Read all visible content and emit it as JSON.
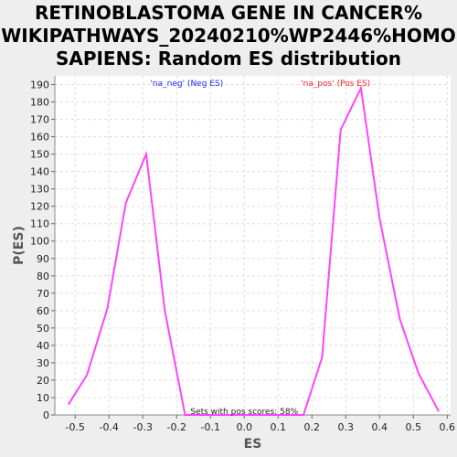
{
  "chart_data": {
    "type": "line",
    "title_lines": [
      "RETINOBLASTOMA GENE IN CANCER%",
      "WIKIPATHWAYS_20240210%WP2446%HOMO",
      "SAPIENS: Random ES distribution"
    ],
    "xlabel": "ES",
    "ylabel": "P(ES)",
    "xlim": [
      -0.56,
      0.61
    ],
    "ylim": [
      0,
      195
    ],
    "xticks": [
      -0.5,
      -0.4,
      -0.3,
      -0.2,
      -0.1,
      0.0,
      0.1,
      0.2,
      0.3,
      0.4,
      0.5,
      0.6
    ],
    "yticks": [
      0,
      10,
      20,
      30,
      40,
      50,
      60,
      70,
      80,
      90,
      100,
      110,
      120,
      130,
      140,
      150,
      160,
      170,
      180,
      190
    ],
    "xtick_labels": [
      "-0.5",
      "-0.4",
      "-0.3",
      "-0.2",
      "-0.1",
      "0.0",
      "0.1",
      "0.2",
      "0.3",
      "0.4",
      "0.5",
      "0.6"
    ],
    "grid": true,
    "series": [
      {
        "color": "#ff44ff",
        "x": [
          -0.52,
          -0.465,
          -0.405,
          -0.35,
          -0.29,
          -0.235,
          -0.175,
          0.175,
          0.23,
          0.285,
          0.345,
          0.4,
          0.46,
          0.515,
          0.575
        ],
        "values": [
          6,
          23,
          61,
          122,
          150,
          60,
          0,
          0,
          33,
          164,
          188,
          113,
          55,
          24,
          2
        ]
      }
    ],
    "annotations": [
      {
        "text": "'na_neg' (Neg ES)",
        "x": -0.17,
        "color": "#2222ff"
      },
      {
        "text": "'na_pos' (Pos ES)",
        "x": 0.27,
        "color": "#ff2222"
      },
      {
        "text": "Sets with pos scores: 58%",
        "x": 0.0,
        "color": "#222222"
      }
    ]
  }
}
